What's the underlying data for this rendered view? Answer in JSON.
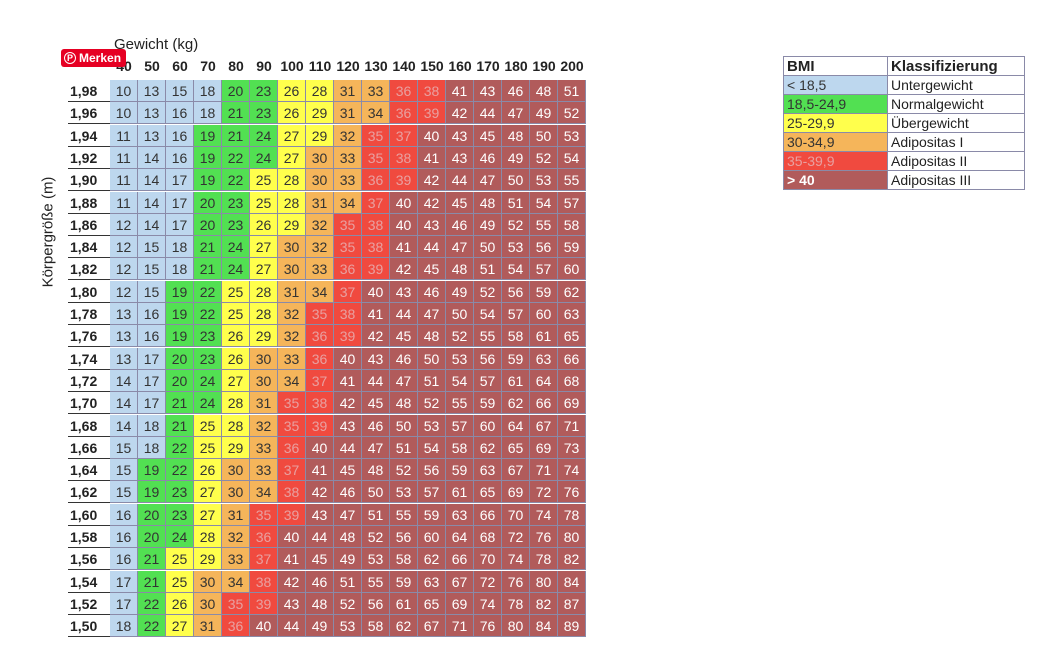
{
  "pin_button": "Merken",
  "x_axis_label": "Gewicht (kg)",
  "y_axis_label": "Körpergröße (m)",
  "colors": {
    "under": "#bdd7ee",
    "normal": "#52e052",
    "over": "#ffff4c",
    "obese1": "#f5b55a",
    "obese2": "#f04a3f",
    "obese3": "#b15b5b"
  },
  "legend": {
    "headers": [
      "BMI",
      "Klassifizierung"
    ],
    "rows": [
      {
        "bmi": "< 18,5",
        "label": "Untergewicht",
        "color_key": "under"
      },
      {
        "bmi": "18,5-24,9",
        "label": "Normalgewicht",
        "color_key": "normal"
      },
      {
        "bmi": "25-29,9",
        "label": "Übergewicht",
        "color_key": "over"
      },
      {
        "bmi": "30-34,9",
        "label": "Adipositas I",
        "color_key": "obese1"
      },
      {
        "bmi": "35-39,9",
        "label": "Adipositas II",
        "color_key": "obese2"
      },
      {
        "bmi": "> 40",
        "label": "Adipositas III",
        "color_key": "obese3"
      }
    ]
  },
  "chart_data": {
    "type": "heatmap",
    "xlabel": "Gewicht (kg)",
    "ylabel": "Körpergröße (m)",
    "columns": [
      "40",
      "50",
      "60",
      "70",
      "80",
      "90",
      "100",
      "110",
      "120",
      "130",
      "140",
      "150",
      "160",
      "170",
      "180",
      "190",
      "200"
    ],
    "rows": [
      {
        "label": "1,98",
        "values": [
          10,
          13,
          15,
          18,
          20,
          23,
          26,
          28,
          31,
          33,
          36,
          38,
          41,
          43,
          46,
          48,
          51
        ]
      },
      {
        "label": "1,96",
        "values": [
          10,
          13,
          16,
          18,
          21,
          23,
          26,
          29,
          31,
          34,
          36,
          39,
          42,
          44,
          47,
          49,
          52
        ]
      },
      {
        "label": "1,94",
        "values": [
          11,
          13,
          16,
          19,
          21,
          24,
          27,
          29,
          32,
          35,
          37,
          40,
          43,
          45,
          48,
          50,
          53
        ]
      },
      {
        "label": "1,92",
        "values": [
          11,
          14,
          16,
          19,
          22,
          24,
          27,
          30,
          33,
          35,
          38,
          41,
          43,
          46,
          49,
          52,
          54
        ]
      },
      {
        "label": "1,90",
        "values": [
          11,
          14,
          17,
          19,
          22,
          25,
          28,
          30,
          33,
          36,
          39,
          42,
          44,
          47,
          50,
          53,
          55
        ]
      },
      {
        "label": "1,88",
        "values": [
          11,
          14,
          17,
          20,
          23,
          25,
          28,
          31,
          34,
          37,
          40,
          42,
          45,
          48,
          51,
          54,
          57
        ]
      },
      {
        "label": "1,86",
        "values": [
          12,
          14,
          17,
          20,
          23,
          26,
          29,
          32,
          35,
          38,
          40,
          43,
          46,
          49,
          52,
          55,
          58
        ]
      },
      {
        "label": "1,84",
        "values": [
          12,
          15,
          18,
          21,
          24,
          27,
          30,
          32,
          35,
          38,
          41,
          44,
          47,
          50,
          53,
          56,
          59
        ]
      },
      {
        "label": "1,82",
        "values": [
          12,
          15,
          18,
          21,
          24,
          27,
          30,
          33,
          36,
          39,
          42,
          45,
          48,
          51,
          54,
          57,
          60
        ]
      },
      {
        "label": "1,80",
        "values": [
          12,
          15,
          19,
          22,
          25,
          28,
          31,
          34,
          37,
          40,
          43,
          46,
          49,
          52,
          56,
          59,
          62
        ]
      },
      {
        "label": "1,78",
        "values": [
          13,
          16,
          19,
          22,
          25,
          28,
          32,
          35,
          38,
          41,
          44,
          47,
          50,
          54,
          57,
          60,
          63
        ]
      },
      {
        "label": "1,76",
        "values": [
          13,
          16,
          19,
          23,
          26,
          29,
          32,
          36,
          39,
          42,
          45,
          48,
          52,
          55,
          58,
          61,
          65
        ]
      },
      {
        "label": "1,74",
        "values": [
          13,
          17,
          20,
          23,
          26,
          30,
          33,
          36,
          40,
          43,
          46,
          50,
          53,
          56,
          59,
          63,
          66
        ]
      },
      {
        "label": "1,72",
        "values": [
          14,
          17,
          20,
          24,
          27,
          30,
          34,
          37,
          41,
          44,
          47,
          51,
          54,
          57,
          61,
          64,
          68
        ]
      },
      {
        "label": "1,70",
        "values": [
          14,
          17,
          21,
          24,
          28,
          31,
          35,
          38,
          42,
          45,
          48,
          52,
          55,
          59,
          62,
          66,
          69
        ]
      },
      {
        "label": "1,68",
        "values": [
          14,
          18,
          21,
          25,
          28,
          32,
          35,
          39,
          43,
          46,
          50,
          53,
          57,
          60,
          64,
          67,
          71
        ]
      },
      {
        "label": "1,66",
        "values": [
          15,
          18,
          22,
          25,
          29,
          33,
          36,
          40,
          44,
          47,
          51,
          54,
          58,
          62,
          65,
          69,
          73
        ]
      },
      {
        "label": "1,64",
        "values": [
          15,
          19,
          22,
          26,
          30,
          33,
          37,
          41,
          45,
          48,
          52,
          56,
          59,
          63,
          67,
          71,
          74
        ]
      },
      {
        "label": "1,62",
        "values": [
          15,
          19,
          23,
          27,
          30,
          34,
          38,
          42,
          46,
          50,
          53,
          57,
          61,
          65,
          69,
          72,
          76
        ]
      },
      {
        "label": "1,60",
        "values": [
          16,
          20,
          23,
          27,
          31,
          35,
          39,
          43,
          47,
          51,
          55,
          59,
          63,
          66,
          70,
          74,
          78
        ]
      },
      {
        "label": "1,58",
        "values": [
          16,
          20,
          24,
          28,
          32,
          36,
          40,
          44,
          48,
          52,
          56,
          60,
          64,
          68,
          72,
          76,
          80
        ]
      },
      {
        "label": "1,56",
        "values": [
          16,
          21,
          25,
          29,
          33,
          37,
          41,
          45,
          49,
          53,
          58,
          62,
          66,
          70,
          74,
          78,
          82
        ]
      },
      {
        "label": "1,54",
        "values": [
          17,
          21,
          25,
          30,
          34,
          38,
          42,
          46,
          51,
          55,
          59,
          63,
          67,
          72,
          76,
          80,
          84
        ]
      },
      {
        "label": "1,52",
        "values": [
          17,
          22,
          26,
          30,
          35,
          39,
          43,
          48,
          52,
          56,
          61,
          65,
          69,
          74,
          78,
          82,
          87
        ]
      },
      {
        "label": "1,50",
        "values": [
          18,
          22,
          27,
          31,
          36,
          40,
          44,
          49,
          53,
          58,
          62,
          67,
          71,
          76,
          80,
          84,
          89
        ]
      }
    ]
  }
}
